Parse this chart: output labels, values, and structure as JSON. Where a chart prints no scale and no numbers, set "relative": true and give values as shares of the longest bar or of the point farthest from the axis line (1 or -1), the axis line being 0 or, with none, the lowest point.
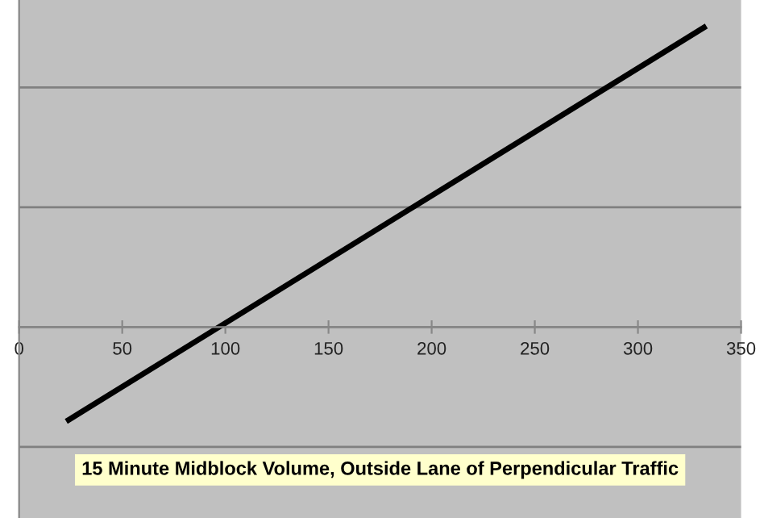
{
  "chart_data": {
    "type": "line",
    "xlabel": "15 Minute Midblock Volume, Outside Lane of Perpendicular Traffic",
    "relative": true,
    "xlim": [
      0,
      350
    ],
    "xticks": [
      0,
      50,
      100,
      150,
      200,
      250,
      300,
      350
    ],
    "series": [
      {
        "color": "#000000",
        "x": [
          24,
          332
        ],
        "values": [
          -0.31,
          1
        ]
      }
    ],
    "grid": "y",
    "marker": "none",
    "line_style": "solid",
    "tick_labels": "x"
  }
}
